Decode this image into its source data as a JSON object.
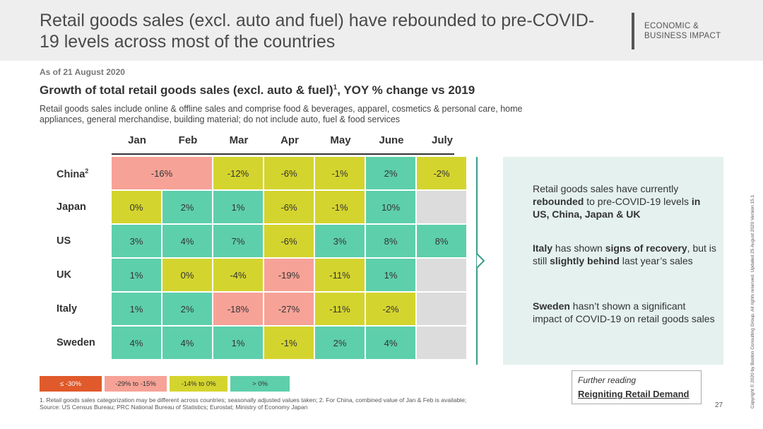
{
  "header": {
    "title": "Retail goods sales (excl. auto and fuel) have rebounded to pre-COVID-19 levels across most of the countries",
    "brand_line1": "ECONOMIC &",
    "brand_line2": "BUSINESS IMPACT"
  },
  "date": "As of 21 August 2020",
  "subtitle": "Growth of total retail goods sales (excl. auto & fuel)",
  "subtitle_sup": "1",
  "subtitle_suffix": ", YOY % change vs 2019",
  "description": "Retail goods sales include online & offline sales and comprise food & beverages, apparel, cosmetics & personal care, home appliances, general merchandise, building material; do not include auto, fuel & food services",
  "colors": {
    "le_minus30": "#e05a2b",
    "m29_m15": "#f7a297",
    "m14_0": "#d4d42f",
    "gt0": "#5ecfab",
    "na": "#dcdcdc",
    "accent": "#3a9e88",
    "panel_bg": "#e4f1ee"
  },
  "chart_data": {
    "type": "heatmap",
    "title": "Growth of total retail goods sales (excl. auto & fuel), YOY % change vs 2019",
    "columns": [
      "Jan",
      "Feb",
      "Mar",
      "Apr",
      "May",
      "June",
      "July"
    ],
    "rows": [
      {
        "name": "China",
        "sup": "2",
        "values": [
          "-16%",
          null,
          "-12%",
          "-6%",
          "-1%",
          "2%",
          "-2%"
        ],
        "categories": [
          "m29_m15",
          null,
          "m14_0",
          "m14_0",
          "m14_0",
          "gt0",
          "m14_0"
        ],
        "merged_jan_feb": true
      },
      {
        "name": "Japan",
        "values": [
          "0%",
          "2%",
          "1%",
          "-6%",
          "-1%",
          "10%",
          ""
        ],
        "categories": [
          "m14_0",
          "gt0",
          "gt0",
          "m14_0",
          "m14_0",
          "gt0",
          "na"
        ]
      },
      {
        "name": "US",
        "values": [
          "3%",
          "4%",
          "7%",
          "-6%",
          "3%",
          "8%",
          "8%"
        ],
        "categories": [
          "gt0",
          "gt0",
          "gt0",
          "m14_0",
          "gt0",
          "gt0",
          "gt0"
        ]
      },
      {
        "name": "UK",
        "values": [
          "1%",
          "0%",
          "-4%",
          "-19%",
          "-11%",
          "1%",
          ""
        ],
        "categories": [
          "gt0",
          "m14_0",
          "m14_0",
          "m29_m15",
          "m14_0",
          "gt0",
          "na"
        ]
      },
      {
        "name": "Italy",
        "values": [
          "1%",
          "2%",
          "-18%",
          "-27%",
          "-11%",
          "-2%",
          ""
        ],
        "categories": [
          "gt0",
          "gt0",
          "m29_m15",
          "m29_m15",
          "m14_0",
          "m14_0",
          "na"
        ]
      },
      {
        "name": "Sweden",
        "values": [
          "4%",
          "4%",
          "1%",
          "-1%",
          "2%",
          "4%",
          ""
        ],
        "categories": [
          "gt0",
          "gt0",
          "gt0",
          "m14_0",
          "gt0",
          "gt0",
          "na"
        ]
      }
    ],
    "legend": [
      {
        "label": "≤ -30%",
        "key": "le_minus30"
      },
      {
        "label": "-29% to -15%",
        "key": "m29_m15"
      },
      {
        "label": "-14% to 0%",
        "key": "m14_0"
      },
      {
        "label": "> 0%",
        "key": "gt0"
      }
    ]
  },
  "panel": {
    "p1_a": "Retail goods sales have currently ",
    "p1_b": "rebounded",
    "p1_c": " to pre-COVID-19 levels ",
    "p1_d": "in US, China, Japan & UK",
    "p2_a": "Italy",
    "p2_b": " has shown ",
    "p2_c": "signs of recovery",
    "p2_d": ", but is still ",
    "p2_e": "slightly behind",
    "p2_f": " last year’s sales",
    "p3_a": "Sweden",
    "p3_b": " hasn’t shown a significant impact of COVID-19 on retail goods sales"
  },
  "footnote1": "1. Retail goods sales categorization may be different across countries; seasonally adjusted values taken;  2. For China, combined value of Jan & Feb is available;",
  "footnote2": "Source: US Census Bureau; PRC National Bureau of Statistics; Eurostat; Ministry of Economy Japan",
  "further": {
    "title": "Further reading",
    "link": "Reigniting Retail Demand"
  },
  "page_number": "27",
  "copyright": "Copyright © 2020 by Boston Consulting Group. All rights reserved. Updated 25 August 2020 Version 15.1"
}
